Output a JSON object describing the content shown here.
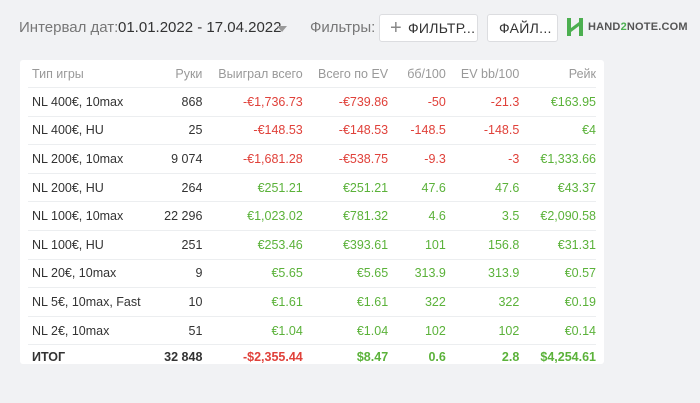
{
  "header": {
    "date_label": "Интервал дат:",
    "date_range": "01.01.2022 - 17.04.2022",
    "filters_label": "Фильтры:",
    "filter_button": "ФИЛЬТР...",
    "file_button": "ФАЙЛ...",
    "logo_part1": "HAND",
    "logo_part2": "2",
    "logo_part3": "NOTE.COM"
  },
  "table": {
    "columns": [
      "Тип игры",
      "Руки",
      "Выиграл всего",
      "Всего по EV",
      "бб/100",
      "EV bb/100",
      "Рейк"
    ],
    "rows": [
      {
        "type": "NL 400€, 10max",
        "hands": "868",
        "won": "-€1,736.73",
        "ev": "-€739.86",
        "bb": "-50",
        "evbb": "-21.3",
        "rake": "€163.95"
      },
      {
        "type": "NL 400€, HU",
        "hands": "25",
        "won": "-€148.53",
        "ev": "-€148.53",
        "bb": "-148.5",
        "evbb": "-148.5",
        "rake": "€4"
      },
      {
        "type": "NL 200€, 10max",
        "hands": "9 074",
        "won": "-€1,681.28",
        "ev": "-€538.75",
        "bb": "-9.3",
        "evbb": "-3",
        "rake": "€1,333.66"
      },
      {
        "type": "NL 200€, HU",
        "hands": "264",
        "won": "€251.21",
        "ev": "€251.21",
        "bb": "47.6",
        "evbb": "47.6",
        "rake": "€43.37"
      },
      {
        "type": "NL 100€, 10max",
        "hands": "22 296",
        "won": "€1,023.02",
        "ev": "€781.32",
        "bb": "4.6",
        "evbb": "3.5",
        "rake": "€2,090.58"
      },
      {
        "type": "NL 100€, HU",
        "hands": "251",
        "won": "€253.46",
        "ev": "€393.61",
        "bb": "101",
        "evbb": "156.8",
        "rake": "€31.31"
      },
      {
        "type": "NL 20€, 10max",
        "hands": "9",
        "won": "€5.65",
        "ev": "€5.65",
        "bb": "313.9",
        "evbb": "313.9",
        "rake": "€0.57"
      },
      {
        "type": "NL 5€, 10max, Fast",
        "hands": "10",
        "won": "€1.61",
        "ev": "€1.61",
        "bb": "322",
        "evbb": "322",
        "rake": "€0.19"
      },
      {
        "type": "NL 2€, 10max",
        "hands": "51",
        "won": "€1.04",
        "ev": "€1.04",
        "bb": "102",
        "evbb": "102",
        "rake": "€0.14"
      }
    ],
    "total": {
      "type": "ИТОГ",
      "hands": "32 848",
      "won": "-$2,355.44",
      "ev": "$8.47",
      "bb": "0.6",
      "evbb": "2.8",
      "rake": "$4,254.61"
    }
  },
  "colors": {
    "negative": "#e0413a",
    "positive": "#5bb23a",
    "brand": "#4caf50"
  }
}
